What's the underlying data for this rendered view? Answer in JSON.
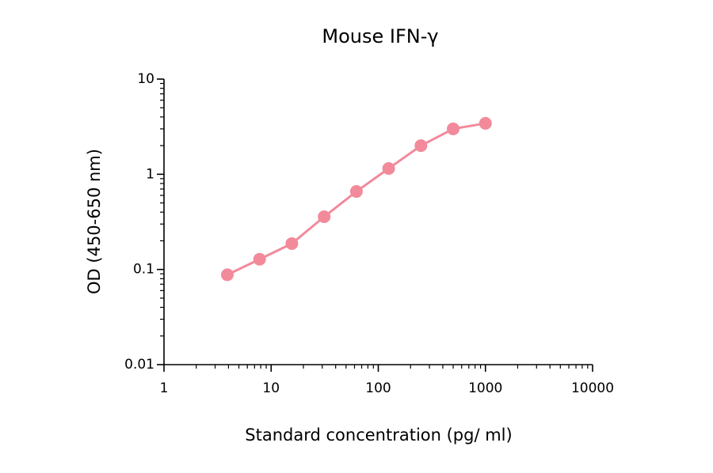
{
  "chart_data": {
    "type": "line",
    "title": "Mouse IFN-γ",
    "x_label": "Standard concentration (pg/ ml)",
    "y_label": "OD (450-650 nm)",
    "x": [
      3.9,
      7.8,
      15.6,
      31.25,
      62.5,
      125,
      250,
      500,
      1000
    ],
    "series": [
      {
        "name": "Mouse IFN-γ",
        "color": "#f28a9b",
        "values": [
          0.088,
          0.128,
          0.187,
          0.358,
          0.66,
          1.15,
          2.0,
          3.0,
          3.43
        ]
      }
    ],
    "xlim": [
      1,
      10000
    ],
    "ylim": [
      0.01,
      10
    ],
    "xticks": [
      1,
      10,
      100,
      1000,
      10000
    ],
    "yticks": [
      0.01,
      0.1,
      1,
      10
    ],
    "x_log": true,
    "y_log": true,
    "grid": false,
    "legend": false
  }
}
